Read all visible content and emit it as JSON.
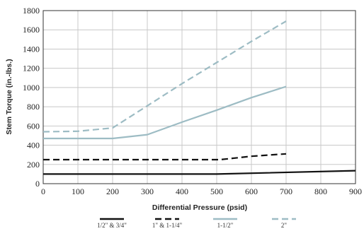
{
  "chart_data": {
    "type": "line",
    "title": "",
    "xlabel": "Differential Pressure (psid)",
    "ylabel": "Stem Torque (in.-lbs.)",
    "xlim": [
      0,
      900
    ],
    "ylim": [
      0,
      1800
    ],
    "xticks": [
      0,
      100,
      200,
      300,
      400,
      500,
      600,
      700,
      800,
      900
    ],
    "yticks": [
      0,
      200,
      400,
      600,
      800,
      1000,
      1200,
      1400,
      1600,
      1800
    ],
    "grid": true,
    "legend_position": "bottom",
    "series": [
      {
        "name": "1/2\" & 3/4\"",
        "color": "#111111",
        "dash": "solid",
        "points": [
          [
            0,
            100
          ],
          [
            200,
            100
          ],
          [
            500,
            100
          ],
          [
            900,
            135
          ]
        ]
      },
      {
        "name": "1\" & 1-1/4\"",
        "color": "#111111",
        "dash": "dashed",
        "points": [
          [
            0,
            250
          ],
          [
            200,
            250
          ],
          [
            510,
            250
          ],
          [
            600,
            285
          ],
          [
            700,
            310
          ]
        ]
      },
      {
        "name": "1-1/2\"",
        "color": "#9dbcc4",
        "dash": "solid",
        "points": [
          [
            0,
            470
          ],
          [
            200,
            470
          ],
          [
            300,
            510
          ],
          [
            400,
            640
          ],
          [
            500,
            765
          ],
          [
            600,
            895
          ],
          [
            700,
            1010
          ]
        ]
      },
      {
        "name": "2\"",
        "color": "#9dbcc4",
        "dash": "dashed",
        "points": [
          [
            0,
            540
          ],
          [
            100,
            545
          ],
          [
            200,
            580
          ],
          [
            300,
            810
          ],
          [
            400,
            1040
          ],
          [
            500,
            1260
          ],
          [
            600,
            1480
          ],
          [
            700,
            1690
          ]
        ]
      }
    ]
  }
}
